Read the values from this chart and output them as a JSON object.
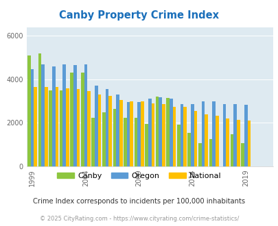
{
  "title": "Canby Property Crime Index",
  "title_color": "#1a6fba",
  "subtitle": "Crime Index corresponds to incidents per 100,000 inhabitants",
  "footer": "© 2025 CityRating.com - https://www.cityrating.com/crime-statistics/",
  "years": [
    1999,
    2000,
    2001,
    2002,
    2003,
    2004,
    2005,
    2006,
    2007,
    2008,
    2009,
    2010,
    2011,
    2012,
    2013,
    2014,
    2015,
    2016,
    2017,
    2018,
    2019,
    2020,
    2021
  ],
  "canby": [
    5100,
    5200,
    3500,
    3480,
    4300,
    4300,
    2230,
    2480,
    2650,
    2230,
    2230,
    1950,
    3200,
    3150,
    1900,
    1540,
    1050,
    1260,
    0,
    1480,
    1050,
    0,
    0
  ],
  "oregon": [
    4450,
    4700,
    4580,
    4700,
    4650,
    4680,
    3700,
    3550,
    3290,
    2960,
    2950,
    3100,
    3180,
    3100,
    2870,
    2850,
    2980,
    2970,
    2870,
    2870,
    2820,
    0,
    0
  ],
  "national": [
    3640,
    3650,
    3630,
    3580,
    3540,
    3440,
    3290,
    3230,
    3040,
    2980,
    2980,
    2880,
    2840,
    2730,
    2730,
    2540,
    2390,
    2310,
    2200,
    2140,
    2100,
    0,
    0
  ],
  "canby_color": "#8dc63f",
  "oregon_color": "#5b9bd5",
  "national_color": "#ffc000",
  "bg_color": "#deeaf1",
  "yticks": [
    0,
    2000,
    4000,
    6000
  ],
  "ylim": [
    0,
    6400
  ],
  "xtick_years": [
    1999,
    2004,
    2009,
    2014,
    2019
  ],
  "legend_labels": [
    "Canby",
    "Oregon",
    "National"
  ]
}
